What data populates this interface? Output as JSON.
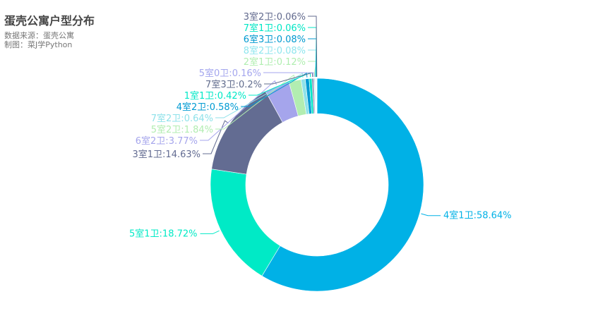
{
  "chart_data": {
    "type": "pie",
    "title": "蛋壳公寓户型分布",
    "subtitle_lines": [
      "数据来源：蛋壳公寓",
      "制图：菜J学Python"
    ],
    "donut": true,
    "series": [
      {
        "name": "4室1卫",
        "label": "4室1卫:58.64%",
        "value": 58.64,
        "color": "#00b1e6"
      },
      {
        "name": "5室1卫",
        "label": "5室1卫:18.72%",
        "value": 18.72,
        "color": "#00eac6"
      },
      {
        "name": "3室1卫",
        "label": "3室1卫:14.63%",
        "value": 14.63,
        "color": "#636c92"
      },
      {
        "name": "6室2卫",
        "label": "6室2卫:3.77%",
        "value": 3.77,
        "color": "#a5a5ec"
      },
      {
        "name": "5室2卫",
        "label": "5室2卫:1.84%",
        "value": 1.84,
        "color": "#b2edb1"
      },
      {
        "name": "7室2卫",
        "label": "7室2卫:0.64%",
        "value": 0.64,
        "color": "#8fe2ea"
      },
      {
        "name": "4室2卫",
        "label": "4室2卫:0.58%",
        "value": 0.58,
        "color": "#009ad2"
      },
      {
        "name": "1室1卫",
        "label": "1室1卫:0.42%",
        "value": 0.42,
        "color": "#00e8c7"
      },
      {
        "name": "7室3卫",
        "label": "7室3卫:0.2%",
        "value": 0.2,
        "color": "#626d8e"
      },
      {
        "name": "5室0卫",
        "label": "5室0卫:0.16%",
        "value": 0.16,
        "color": "#a4a6ee"
      },
      {
        "name": "2室1卫",
        "label": "2室1卫:0.12%",
        "value": 0.12,
        "color": "#b0eeb0"
      },
      {
        "name": "8室2卫",
        "label": "8室2卫:0.08%",
        "value": 0.08,
        "color": "#8fe6ee"
      },
      {
        "name": "6室3卫",
        "label": "6室3卫:0.08%",
        "value": 0.08,
        "color": "#0099cf"
      },
      {
        "name": "7室1卫",
        "label": "7室1卫:0.06%",
        "value": 0.06,
        "color": "#00e6c5"
      },
      {
        "name": "3室2卫",
        "label": "3室2卫:0.06%",
        "value": 0.06,
        "color": "#626a8e"
      }
    ]
  }
}
